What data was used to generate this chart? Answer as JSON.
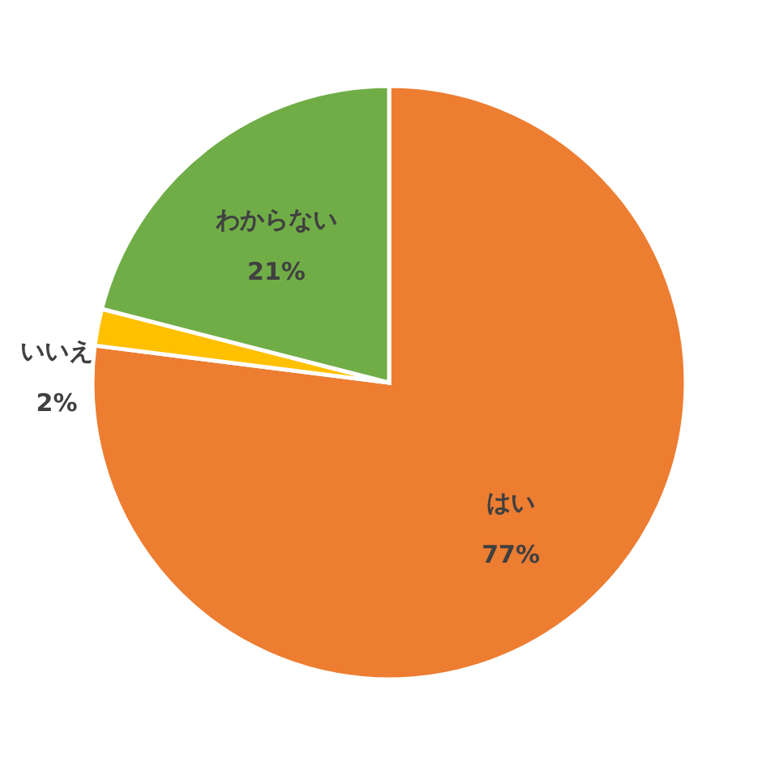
{
  "chart_data": {
    "type": "pie",
    "categories": [
      "はい",
      "いいえ",
      "わからない"
    ],
    "values": [
      77,
      2,
      21
    ],
    "colors": [
      "#ed7d31",
      "#ffc000",
      "#70ad47"
    ],
    "value_labels": [
      "77%",
      "2%",
      "21%"
    ],
    "legend": false
  }
}
